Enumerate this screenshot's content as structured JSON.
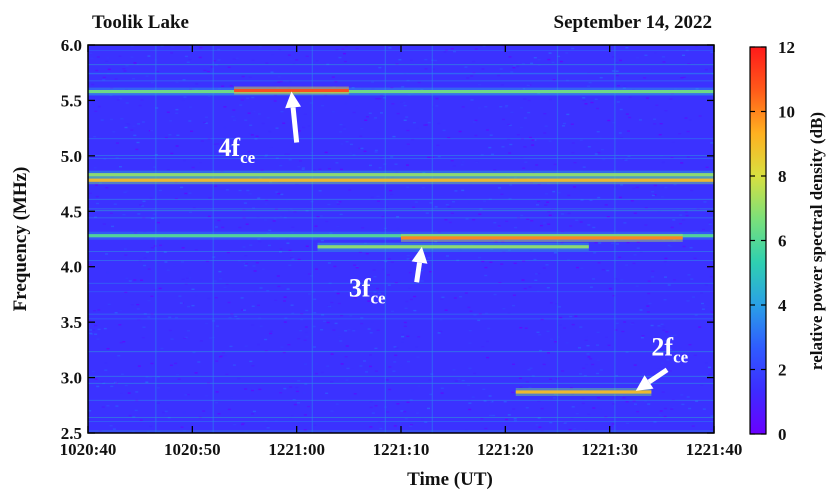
{
  "chart_data": {
    "type": "heatmap",
    "header_left": "Toolik Lake",
    "header_right": "September 14, 2022",
    "xlabel": "Time (UT)",
    "ylabel": "Frequency (MHz)",
    "colorbar_label": "relative power spectral density (dB)",
    "x_ticks": [
      "1020:40",
      "1020:50",
      "1221:00",
      "1221:10",
      "1221:20",
      "1221:30",
      "1221:40"
    ],
    "x_range_seconds": [
      0,
      60
    ],
    "y_ticks": [
      2.5,
      3.0,
      3.5,
      4.0,
      4.5,
      5.0,
      5.5,
      6.0
    ],
    "y_tick_labels": [
      "2.5",
      "3.0",
      "3.5",
      "4.0",
      "4.5",
      "5.0",
      "5.5",
      "6.0"
    ],
    "ylim": [
      2.5,
      6.0
    ],
    "colorbar_ticks": [
      0,
      2,
      4,
      6,
      8,
      10,
      12
    ],
    "colorbar_range": [
      0,
      12
    ],
    "colormap": [
      "#6a00ff",
      "#3d2cff",
      "#2f5bff",
      "#2aa0e6",
      "#2fd0b0",
      "#7be07a",
      "#d8e040",
      "#ffb020",
      "#ff5a1a",
      "#ff1a1a"
    ],
    "background_level_db": 1.5,
    "bands": [
      {
        "freq": 5.58,
        "t_start": 0,
        "t_end": 60,
        "level": 6.5
      },
      {
        "freq": 5.59,
        "t_start": 14,
        "t_end": 25,
        "level": 11
      },
      {
        "freq": 4.83,
        "t_start": 0,
        "t_end": 60,
        "level": 7
      },
      {
        "freq": 4.78,
        "t_start": 0,
        "t_end": 60,
        "level": 9
      },
      {
        "freq": 4.28,
        "t_start": 0,
        "t_end": 60,
        "level": 6
      },
      {
        "freq": 4.26,
        "t_start": 30,
        "t_end": 57,
        "level": 10
      },
      {
        "freq": 4.18,
        "t_start": 22,
        "t_end": 48,
        "level": 7
      },
      {
        "freq": 2.87,
        "t_start": 41,
        "t_end": 54,
        "level": 9
      }
    ],
    "annotations": [
      {
        "base": "4f",
        "sub": "ce",
        "arrow_from": [
          20,
          5.12
        ],
        "arrow_to": [
          19.5,
          5.58
        ],
        "label_at": [
          12.5,
          5.0
        ]
      },
      {
        "base": "3f",
        "sub": "ce",
        "arrow_from": [
          31.5,
          3.86
        ],
        "arrow_to": [
          32,
          4.18
        ],
        "label_at": [
          25,
          3.73
        ]
      },
      {
        "base": "2f",
        "sub": "ce",
        "arrow_from": [
          55.5,
          3.07
        ],
        "arrow_to": [
          52.5,
          2.88
        ],
        "label_at": [
          54,
          3.2
        ]
      }
    ]
  }
}
